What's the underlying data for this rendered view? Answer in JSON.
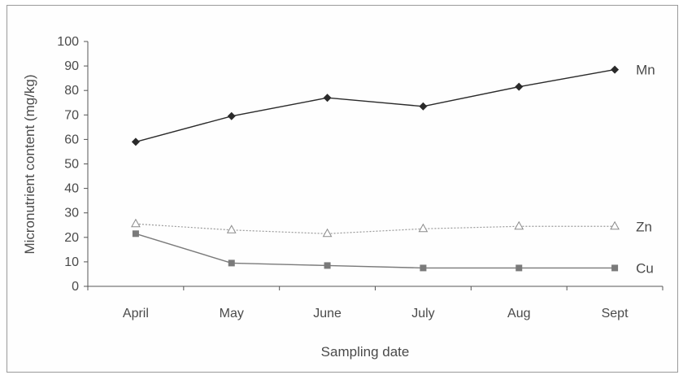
{
  "chart_data": {
    "type": "line",
    "categories": [
      "April",
      "May",
      "June",
      "July",
      "Aug",
      "Sept"
    ],
    "series": [
      {
        "name": "Mn",
        "values": [
          59,
          69.5,
          77,
          73.5,
          81.5,
          88.5
        ],
        "color": "#2a2a2a",
        "marker": "diamond",
        "line": "solid"
      },
      {
        "name": "Zn",
        "values": [
          25.5,
          23,
          21.5,
          23.5,
          24.5,
          24.5
        ],
        "color": "#9a9a9a",
        "marker": "triangle-open",
        "line": "dotted"
      },
      {
        "name": "Cu",
        "values": [
          21.5,
          9.5,
          8.5,
          7.5,
          7.5,
          7.5
        ],
        "color": "#7a7a7a",
        "marker": "square",
        "line": "solid"
      }
    ],
    "yticks": [
      0,
      10,
      20,
      30,
      40,
      50,
      60,
      70,
      80,
      90,
      100
    ],
    "ylim": [
      0,
      100
    ],
    "xlabel": "Sampling date",
    "ylabel": "Micronutrient content (mg/kg)",
    "title": "",
    "grid": false,
    "legend": "labels at line ends (right)"
  }
}
